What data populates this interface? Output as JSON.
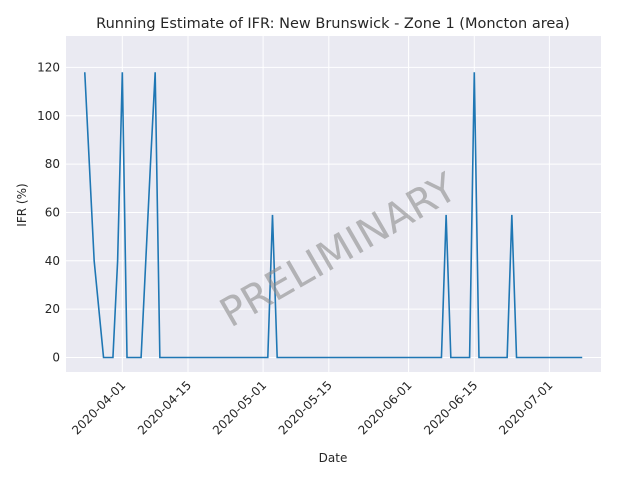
{
  "chart_data": {
    "type": "line",
    "title": "Running Estimate of IFR: New Brunswick - Zone 1 (Moncton area)",
    "xlabel": "Date",
    "ylabel": "IFR (%)",
    "watermark": "PRELIMINARY",
    "xlim": [
      "2020-03-20",
      "2020-07-12"
    ],
    "ylim": [
      -6,
      133
    ],
    "xticks": [
      "2020-04-01",
      "2020-04-15",
      "2020-05-01",
      "2020-05-15",
      "2020-06-01",
      "2020-06-15",
      "2020-07-01"
    ],
    "yticks": [
      0,
      20,
      40,
      60,
      80,
      100,
      120
    ],
    "grid": true,
    "series_color": "#1f77b4",
    "series": [
      {
        "x": [
          "2020-03-24",
          "2020-03-26",
          "2020-03-28",
          "2020-03-29",
          "2020-03-30",
          "2020-03-31",
          "2020-04-01",
          "2020-04-02",
          "2020-04-03",
          "2020-04-04",
          "2020-04-05",
          "2020-04-06",
          "2020-04-07",
          "2020-04-08",
          "2020-04-09",
          "2020-04-10",
          "2020-05-01",
          "2020-05-02",
          "2020-05-03",
          "2020-05-04",
          "2020-06-08",
          "2020-06-09",
          "2020-06-10",
          "2020-06-14",
          "2020-06-15",
          "2020-06-16",
          "2020-06-22",
          "2020-06-23",
          "2020-06-24",
          "2020-07-08"
        ],
        "values": [
          118,
          40,
          0,
          0,
          0,
          40,
          118,
          0,
          0,
          0,
          0,
          40,
          80,
          118,
          0,
          0,
          0,
          0,
          59,
          0,
          0,
          59,
          0,
          0,
          118,
          0,
          0,
          59,
          0,
          0
        ]
      }
    ]
  }
}
